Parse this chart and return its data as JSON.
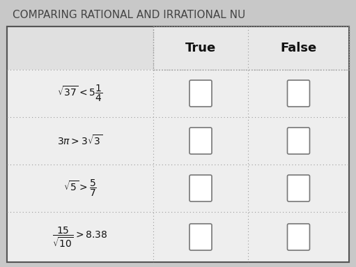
{
  "title": "COMPARING RATIONAL AND IRRATIONAL NU",
  "title_fontsize": 11,
  "title_color": "#444444",
  "bg_color": "#c8c8c8",
  "table_bg": "#e8e8e8",
  "cell_bg": "#f4f4f4",
  "col_headers": [
    "True",
    "False"
  ],
  "row_expressions": [
    "$\\sqrt{37} < 5\\dfrac{1}{4}$",
    "$3\\pi > 3\\sqrt{3}$",
    "$\\sqrt{5} > \\dfrac{5}{7}$",
    "$\\dfrac{15}{\\sqrt{10}} > 8.38$"
  ],
  "n_rows": 4,
  "checkbox_color": "#777777",
  "grid_color": "#999999",
  "outer_border_color": "#555555"
}
